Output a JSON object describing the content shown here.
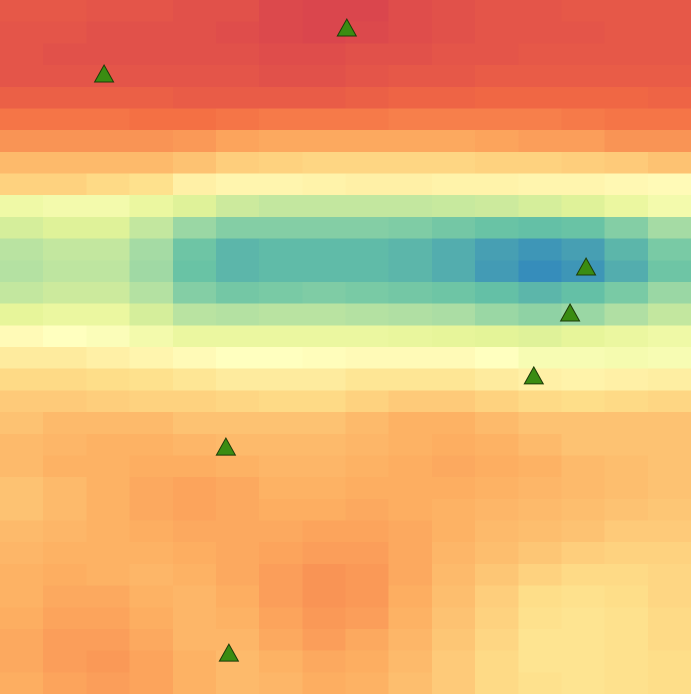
{
  "chart_data": {
    "type": "heatmap",
    "xlim": [
      0,
      16
    ],
    "ylim": [
      32,
      0
    ],
    "zlim": [
      0,
      1
    ],
    "colors": [
      "#3288bd",
      "#66c2a5",
      "#abdda4",
      "#e6f598",
      "#ffffbf",
      "#fee08b",
      "#fdae61",
      "#f46d43",
      "#d53e4f"
    ],
    "z": [
      [
        0.93,
        0.93,
        0.94,
        0.94,
        0.95,
        0.95,
        0.97,
        0.98,
        0.98,
        0.96,
        0.95,
        0.94,
        0.94,
        0.93,
        0.93,
        0.93
      ],
      [
        0.94,
        0.94,
        0.95,
        0.95,
        0.95,
        0.96,
        0.97,
        0.98,
        0.97,
        0.96,
        0.95,
        0.94,
        0.94,
        0.94,
        0.93,
        0.93
      ],
      [
        0.94,
        0.95,
        0.95,
        0.95,
        0.95,
        0.95,
        0.96,
        0.96,
        0.95,
        0.95,
        0.94,
        0.94,
        0.93,
        0.93,
        0.93,
        0.93
      ],
      [
        0.94,
        0.94,
        0.94,
        0.94,
        0.94,
        0.94,
        0.95,
        0.95,
        0.94,
        0.93,
        0.93,
        0.92,
        0.92,
        0.92,
        0.92,
        0.92
      ],
      [
        0.91,
        0.91,
        0.91,
        0.91,
        0.92,
        0.92,
        0.92,
        0.92,
        0.91,
        0.9,
        0.9,
        0.89,
        0.89,
        0.89,
        0.89,
        0.9
      ],
      [
        0.86,
        0.86,
        0.86,
        0.87,
        0.87,
        0.86,
        0.85,
        0.85,
        0.85,
        0.84,
        0.84,
        0.84,
        0.84,
        0.85,
        0.86,
        0.86
      ],
      [
        0.8,
        0.8,
        0.8,
        0.8,
        0.79,
        0.77,
        0.76,
        0.76,
        0.76,
        0.76,
        0.76,
        0.77,
        0.78,
        0.78,
        0.8,
        0.8
      ],
      [
        0.72,
        0.72,
        0.72,
        0.72,
        0.7,
        0.67,
        0.66,
        0.65,
        0.65,
        0.65,
        0.65,
        0.66,
        0.66,
        0.67,
        0.68,
        0.7
      ],
      [
        0.66,
        0.66,
        0.64,
        0.62,
        0.56,
        0.54,
        0.54,
        0.55,
        0.56,
        0.56,
        0.55,
        0.55,
        0.54,
        0.54,
        0.53,
        0.52
      ],
      [
        0.42,
        0.44,
        0.44,
        0.4,
        0.36,
        0.32,
        0.3,
        0.3,
        0.3,
        0.3,
        0.31,
        0.32,
        0.34,
        0.36,
        0.4,
        0.44
      ],
      [
        0.34,
        0.36,
        0.36,
        0.3,
        0.22,
        0.18,
        0.18,
        0.18,
        0.18,
        0.17,
        0.15,
        0.13,
        0.12,
        0.13,
        0.18,
        0.24
      ],
      [
        0.28,
        0.3,
        0.3,
        0.24,
        0.14,
        0.1,
        0.11,
        0.11,
        0.11,
        0.1,
        0.08,
        0.05,
        0.03,
        0.05,
        0.1,
        0.16
      ],
      [
        0.27,
        0.29,
        0.29,
        0.23,
        0.13,
        0.1,
        0.11,
        0.11,
        0.11,
        0.1,
        0.08,
        0.04,
        0.01,
        0.03,
        0.08,
        0.14
      ],
      [
        0.3,
        0.32,
        0.32,
        0.27,
        0.18,
        0.15,
        0.16,
        0.17,
        0.16,
        0.15,
        0.14,
        0.12,
        0.1,
        0.12,
        0.16,
        0.22
      ],
      [
        0.38,
        0.4,
        0.4,
        0.34,
        0.28,
        0.27,
        0.28,
        0.28,
        0.27,
        0.26,
        0.25,
        0.22,
        0.2,
        0.22,
        0.26,
        0.3
      ],
      [
        0.52,
        0.5,
        0.48,
        0.44,
        0.4,
        0.4,
        0.4,
        0.4,
        0.4,
        0.39,
        0.38,
        0.37,
        0.36,
        0.38,
        0.4,
        0.42
      ],
      [
        0.58,
        0.58,
        0.56,
        0.54,
        0.52,
        0.5,
        0.5,
        0.51,
        0.52,
        0.52,
        0.52,
        0.5,
        0.46,
        0.46,
        0.45,
        0.46
      ],
      [
        0.64,
        0.64,
        0.63,
        0.62,
        0.6,
        0.58,
        0.58,
        0.58,
        0.6,
        0.6,
        0.6,
        0.58,
        0.56,
        0.55,
        0.56,
        0.57
      ],
      [
        0.68,
        0.68,
        0.67,
        0.66,
        0.66,
        0.65,
        0.64,
        0.64,
        0.66,
        0.68,
        0.68,
        0.66,
        0.64,
        0.63,
        0.64,
        0.65
      ],
      [
        0.7,
        0.72,
        0.72,
        0.72,
        0.7,
        0.7,
        0.7,
        0.7,
        0.72,
        0.74,
        0.74,
        0.72,
        0.7,
        0.7,
        0.7,
        0.7
      ],
      [
        0.72,
        0.73,
        0.74,
        0.74,
        0.73,
        0.72,
        0.72,
        0.72,
        0.73,
        0.74,
        0.75,
        0.74,
        0.72,
        0.7,
        0.7,
        0.7
      ],
      [
        0.72,
        0.74,
        0.74,
        0.75,
        0.75,
        0.74,
        0.73,
        0.73,
        0.74,
        0.75,
        0.76,
        0.75,
        0.74,
        0.72,
        0.71,
        0.7
      ],
      [
        0.7,
        0.72,
        0.74,
        0.76,
        0.77,
        0.76,
        0.74,
        0.74,
        0.75,
        0.75,
        0.75,
        0.74,
        0.73,
        0.72,
        0.71,
        0.7
      ],
      [
        0.7,
        0.72,
        0.74,
        0.76,
        0.77,
        0.76,
        0.75,
        0.75,
        0.76,
        0.75,
        0.74,
        0.73,
        0.72,
        0.71,
        0.7,
        0.69
      ],
      [
        0.72,
        0.73,
        0.74,
        0.75,
        0.76,
        0.76,
        0.76,
        0.77,
        0.77,
        0.76,
        0.74,
        0.72,
        0.71,
        0.7,
        0.68,
        0.68
      ],
      [
        0.73,
        0.74,
        0.74,
        0.74,
        0.75,
        0.76,
        0.77,
        0.78,
        0.78,
        0.76,
        0.73,
        0.71,
        0.69,
        0.67,
        0.66,
        0.66
      ],
      [
        0.74,
        0.75,
        0.74,
        0.73,
        0.74,
        0.76,
        0.78,
        0.8,
        0.79,
        0.76,
        0.72,
        0.69,
        0.66,
        0.64,
        0.64,
        0.65
      ],
      [
        0.74,
        0.76,
        0.76,
        0.74,
        0.73,
        0.75,
        0.78,
        0.8,
        0.79,
        0.75,
        0.71,
        0.67,
        0.63,
        0.62,
        0.63,
        0.65
      ],
      [
        0.75,
        0.77,
        0.77,
        0.75,
        0.73,
        0.74,
        0.77,
        0.79,
        0.78,
        0.74,
        0.7,
        0.66,
        0.62,
        0.61,
        0.62,
        0.64
      ],
      [
        0.76,
        0.78,
        0.78,
        0.76,
        0.73,
        0.73,
        0.76,
        0.78,
        0.76,
        0.73,
        0.69,
        0.65,
        0.61,
        0.61,
        0.62,
        0.64
      ],
      [
        0.76,
        0.78,
        0.79,
        0.77,
        0.74,
        0.72,
        0.74,
        0.76,
        0.75,
        0.72,
        0.68,
        0.64,
        0.61,
        0.61,
        0.62,
        0.63
      ],
      [
        0.75,
        0.77,
        0.78,
        0.77,
        0.74,
        0.72,
        0.73,
        0.75,
        0.74,
        0.71,
        0.68,
        0.64,
        0.62,
        0.61,
        0.62,
        0.63
      ]
    ],
    "scatter": {
      "color": "#3a8c12",
      "x": [
        8.03,
        2.41,
        13.57,
        13.2,
        12.36,
        5.23,
        5.3
      ],
      "y": [
        1.34,
        3.46,
        12.36,
        14.48,
        17.38,
        20.66,
        30.16
      ]
    }
  }
}
